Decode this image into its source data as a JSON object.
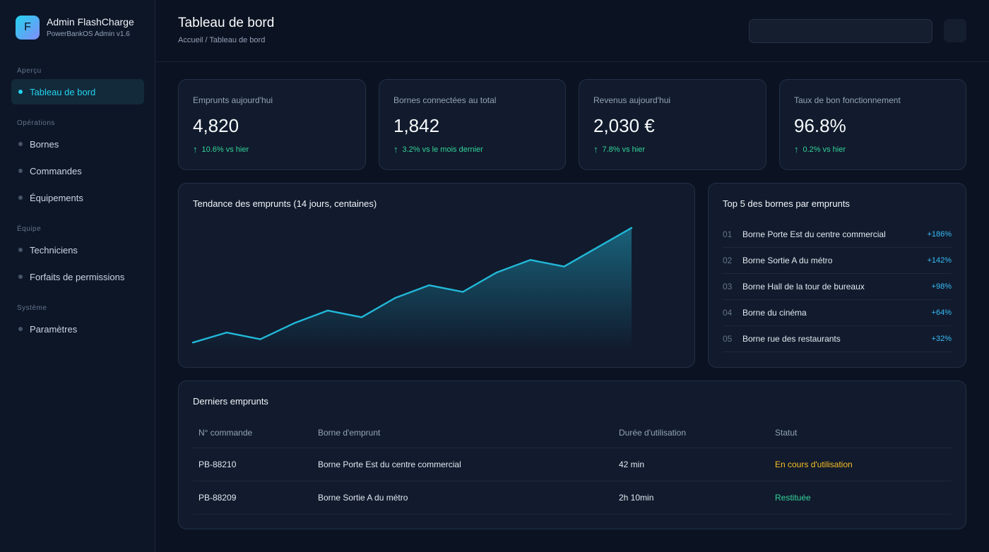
{
  "brand": {
    "logo_letter": "F",
    "name": "Admin FlashCharge",
    "subtitle": "PowerBankOS Admin v1.6"
  },
  "sidebar": {
    "sections": [
      {
        "title": "Aperçu",
        "items": [
          {
            "label": "Tableau de bord",
            "active": true
          }
        ]
      },
      {
        "title": "Opérations",
        "items": [
          {
            "label": "Bornes"
          },
          {
            "label": "Commandes"
          },
          {
            "label": "Équipements"
          }
        ]
      },
      {
        "title": "Équipe",
        "items": [
          {
            "label": "Techniciens"
          },
          {
            "label": "Forfaits de permissions"
          }
        ]
      },
      {
        "title": "Système",
        "items": [
          {
            "label": "Paramètres"
          }
        ]
      }
    ]
  },
  "header": {
    "title": "Tableau de bord",
    "breadcrumb": "Accueil / Tableau de bord"
  },
  "kpis": [
    {
      "label": "Emprunts aujourd'hui",
      "value": "4,820",
      "delta": "10.6% vs hier"
    },
    {
      "label": "Bornes connectées au total",
      "value": "1,842",
      "delta": "3.2% vs le mois dernier"
    },
    {
      "label": "Revenus aujourd'hui",
      "value": "2,030 €",
      "delta": "7.8% vs hier"
    },
    {
      "label": "Taux de bon fonctionnement",
      "value": "96.8%",
      "delta": "0.2% vs hier"
    }
  ],
  "trend": {
    "title": "Tendance des emprunts (14 jours, centaines)"
  },
  "top5": {
    "title": "Top 5 des bornes par emprunts",
    "items": [
      {
        "rank": "01",
        "name": "Borne Porte Est du centre commercial",
        "delta": "+186%"
      },
      {
        "rank": "02",
        "name": "Borne Sortie A du métro",
        "delta": "+142%"
      },
      {
        "rank": "03",
        "name": "Borne Hall de la tour de bureaux",
        "delta": "+98%"
      },
      {
        "rank": "04",
        "name": "Borne du cinéma",
        "delta": "+64%"
      },
      {
        "rank": "05",
        "name": "Borne rue des restaurants",
        "delta": "+32%"
      }
    ]
  },
  "orders": {
    "title": "Derniers emprunts",
    "columns": [
      "N° commande",
      "Borne d'emprunt",
      "Durée d'utilisation",
      "Statut"
    ],
    "rows": [
      {
        "id": "PB-88210",
        "station": "Borne Porte Est du centre commercial",
        "duration": "42 min",
        "status": "En cours d'utilisation",
        "status_type": "warn"
      },
      {
        "id": "PB-88209",
        "station": "Borne Sortie A du métro",
        "duration": "2h 10min",
        "status": "Restituée",
        "status_type": "ok"
      }
    ]
  },
  "chart_data": {
    "type": "area",
    "x": [
      1,
      2,
      3,
      4,
      5,
      6,
      7,
      8,
      9,
      10,
      11,
      12,
      13,
      14
    ],
    "values": [
      5,
      20,
      10,
      34,
      53,
      43,
      72,
      91,
      81,
      110,
      129,
      119,
      148,
      177
    ],
    "ylim": [
      0,
      180
    ],
    "color": "#22b8d8",
    "grid": false
  },
  "colors": {
    "accent": "#22d3ee",
    "positive": "#34d399",
    "warning": "#fbbf24",
    "background": "#0b1221"
  }
}
